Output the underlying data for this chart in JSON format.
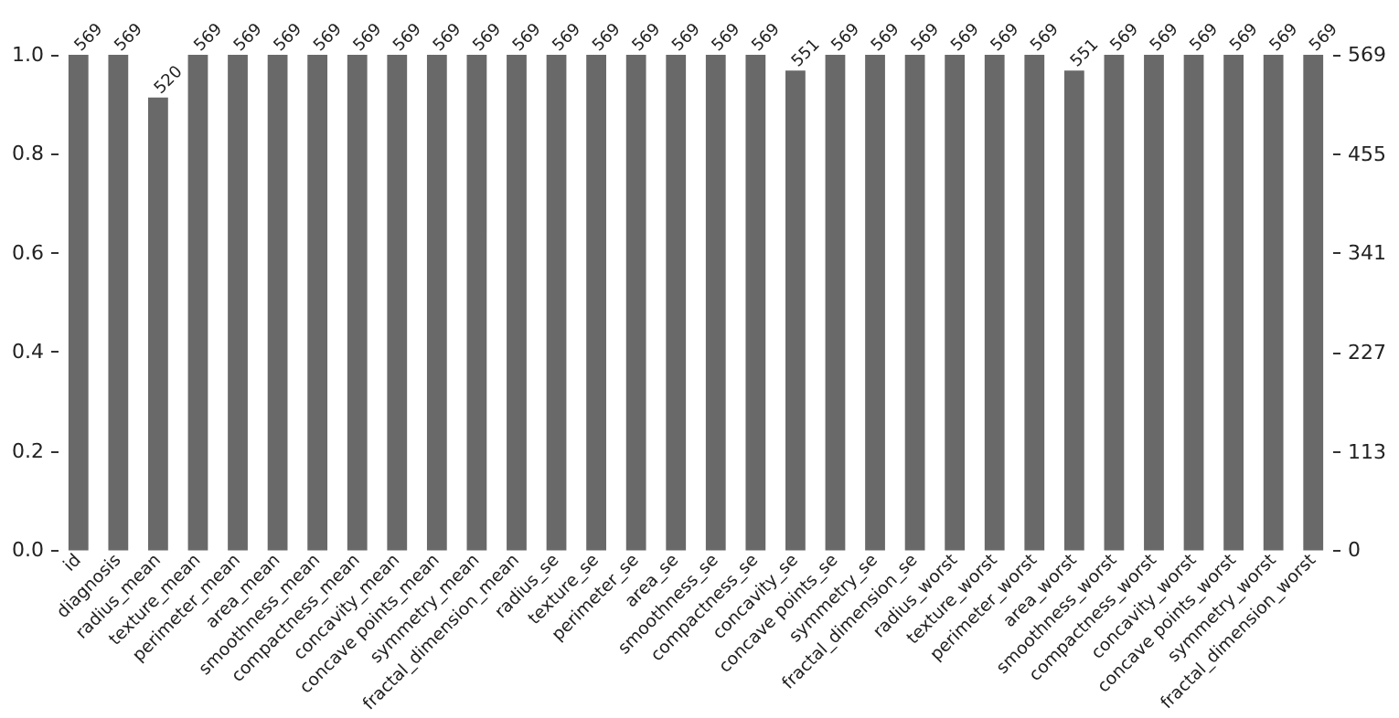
{
  "chart_data": {
    "type": "bar",
    "categories": [
      "id",
      "diagnosis",
      "radius_mean",
      "texture_mean",
      "perimeter_mean",
      "area_mean",
      "smoothness_mean",
      "compactness_mean",
      "concavity_mean",
      "concave points_mean",
      "symmetry_mean",
      "fractal_dimension_mean",
      "radius_se",
      "texture_se",
      "perimeter_se",
      "area_se",
      "smoothness_se",
      "compactness_se",
      "concavity_se",
      "concave points_se",
      "symmetry_se",
      "fractal_dimension_se",
      "radius_worst",
      "texture_worst",
      "perimeter_worst",
      "area_worst",
      "smoothness_worst",
      "compactness_worst",
      "concavity_worst",
      "concave points_worst",
      "symmetry_worst",
      "fractal_dimension_worst"
    ],
    "series": [
      {
        "color": "#696969",
        "axis": "y2",
        "values": [
          569,
          569,
          520,
          569,
          569,
          569,
          569,
          569,
          569,
          569,
          569,
          569,
          569,
          569,
          569,
          569,
          569,
          569,
          551,
          569,
          569,
          569,
          569,
          569,
          569,
          551,
          569,
          569,
          569,
          569,
          569,
          569
        ]
      }
    ],
    "ylim": [
      0,
      1
    ],
    "yticks": [
      {
        "value": 0,
        "label": "0.0"
      },
      0.2,
      0.4,
      0.6,
      0.8,
      {
        "value": 1,
        "label": "1.0"
      }
    ],
    "y2lim": [
      0,
      569
    ],
    "y2ticks": [
      0,
      113,
      227,
      341,
      455,
      569
    ],
    "data_labels": true,
    "grid": false
  }
}
